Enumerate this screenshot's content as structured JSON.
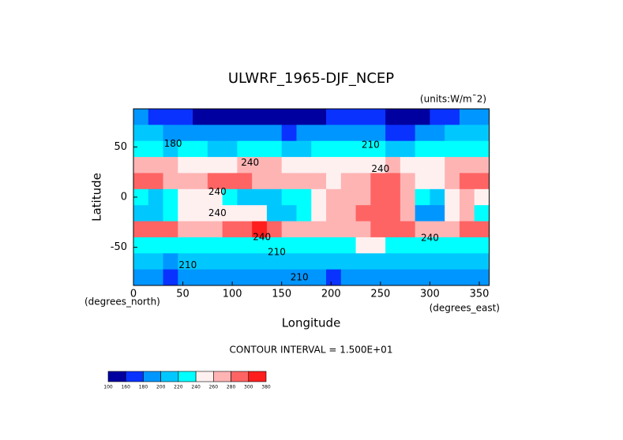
{
  "chart_data": {
    "type": "contour",
    "title": "ULWRF_1965-DJF_NCEP",
    "units": "(units:W/m¯2)",
    "xlabel": "Longitude",
    "ylabel": "Latitude",
    "xunits": "(degrees_east)",
    "yunits": "(degrees_north)",
    "footer": "CONTOUR INTERVAL = 1.500E+01",
    "xlim": [
      0,
      360
    ],
    "ylim": [
      -88,
      88
    ],
    "xticks": [
      0,
      50,
      100,
      150,
      200,
      250,
      300,
      350
    ],
    "yticks": [
      -50,
      0,
      50
    ],
    "levels": [
      100,
      160,
      180,
      200,
      220,
      240,
      260,
      280,
      300,
      380
    ],
    "colors": [
      "#0000a0",
      "#0a32ff",
      "#0096ff",
      "#00c8ff",
      "#00ffff",
      "#fff0f0",
      "#ffb4b4",
      "#ff6464",
      "#ff1e1e"
    ],
    "x": [
      7.5,
      22.5,
      37.5,
      52.5,
      67.5,
      82.5,
      97.5,
      112.5,
      127.5,
      142.5,
      157.5,
      172.5,
      187.5,
      202.5,
      217.5,
      232.5,
      247.5,
      262.5,
      277.5,
      292.5,
      307.5,
      322.5,
      337.5,
      352.5
    ],
    "y": [
      80,
      64,
      48,
      32,
      16,
      0,
      -16,
      -32,
      -48,
      -64,
      -80
    ],
    "values": [
      [
        185,
        170,
        165,
        160,
        155,
        150,
        150,
        155,
        155,
        150,
        150,
        150,
        155,
        160,
        165,
        165,
        160,
        155,
        150,
        155,
        165,
        175,
        185,
        190
      ],
      [
        210,
        200,
        190,
        185,
        180,
        185,
        190,
        195,
        190,
        180,
        175,
        180,
        185,
        190,
        195,
        190,
        185,
        175,
        170,
        180,
        195,
        205,
        210,
        215
      ],
      [
        225,
        220,
        215,
        225,
        235,
        215,
        210,
        225,
        230,
        225,
        215,
        215,
        220,
        225,
        235,
        225,
        220,
        215,
        210,
        225,
        230,
        235,
        235,
        230
      ],
      [
        265,
        270,
        270,
        255,
        250,
        245,
        250,
        260,
        265,
        260,
        255,
        250,
        250,
        245,
        240,
        250,
        255,
        260,
        250,
        245,
        255,
        260,
        265,
        265
      ],
      [
        285,
        280,
        275,
        270,
        275,
        280,
        285,
        280,
        275,
        270,
        270,
        265,
        260,
        255,
        260,
        270,
        280,
        285,
        275,
        240,
        250,
        270,
        285,
        290
      ],
      [
        230,
        215,
        235,
        250,
        255,
        245,
        230,
        215,
        205,
        210,
        220,
        235,
        245,
        260,
        265,
        275,
        280,
        285,
        270,
        230,
        215,
        245,
        260,
        250
      ],
      [
        215,
        205,
        225,
        245,
        250,
        255,
        255,
        250,
        245,
        215,
        205,
        225,
        255,
        270,
        275,
        280,
        285,
        285,
        265,
        195,
        190,
        240,
        260,
        235
      ],
      [
        285,
        290,
        280,
        275,
        270,
        275,
        285,
        295,
        300,
        290,
        275,
        265,
        260,
        265,
        270,
        275,
        280,
        285,
        290,
        275,
        260,
        270,
        280,
        285
      ],
      [
        235,
        230,
        225,
        225,
        230,
        235,
        230,
        225,
        230,
        235,
        230,
        225,
        225,
        230,
        235,
        240,
        240,
        235,
        230,
        225,
        225,
        230,
        235,
        235
      ],
      [
        205,
        200,
        195,
        200,
        205,
        210,
        205,
        200,
        200,
        205,
        210,
        205,
        200,
        205,
        210,
        210,
        205,
        200,
        205,
        210,
        205,
        200,
        205,
        205
      ],
      [
        185,
        180,
        175,
        180,
        185,
        190,
        185,
        180,
        180,
        185,
        190,
        185,
        180,
        175,
        180,
        185,
        190,
        185,
        180,
        185,
        190,
        185,
        180,
        185
      ]
    ],
    "annotations": [
      {
        "text": "180",
        "x": 40,
        "y": 53
      },
      {
        "text": "240",
        "x": 118,
        "y": 34
      },
      {
        "text": "240",
        "x": 85,
        "y": 5
      },
      {
        "text": "240",
        "x": 85,
        "y": -16
      },
      {
        "text": "240",
        "x": 130,
        "y": -40
      },
      {
        "text": "210",
        "x": 145,
        "y": -55
      },
      {
        "text": "210",
        "x": 55,
        "y": -68
      },
      {
        "text": "210",
        "x": 168,
        "y": -80
      },
      {
        "text": "240",
        "x": 250,
        "y": 28
      },
      {
        "text": "240",
        "x": 300,
        "y": -41
      },
      {
        "text": "210",
        "x": 240,
        "y": 52
      }
    ]
  }
}
